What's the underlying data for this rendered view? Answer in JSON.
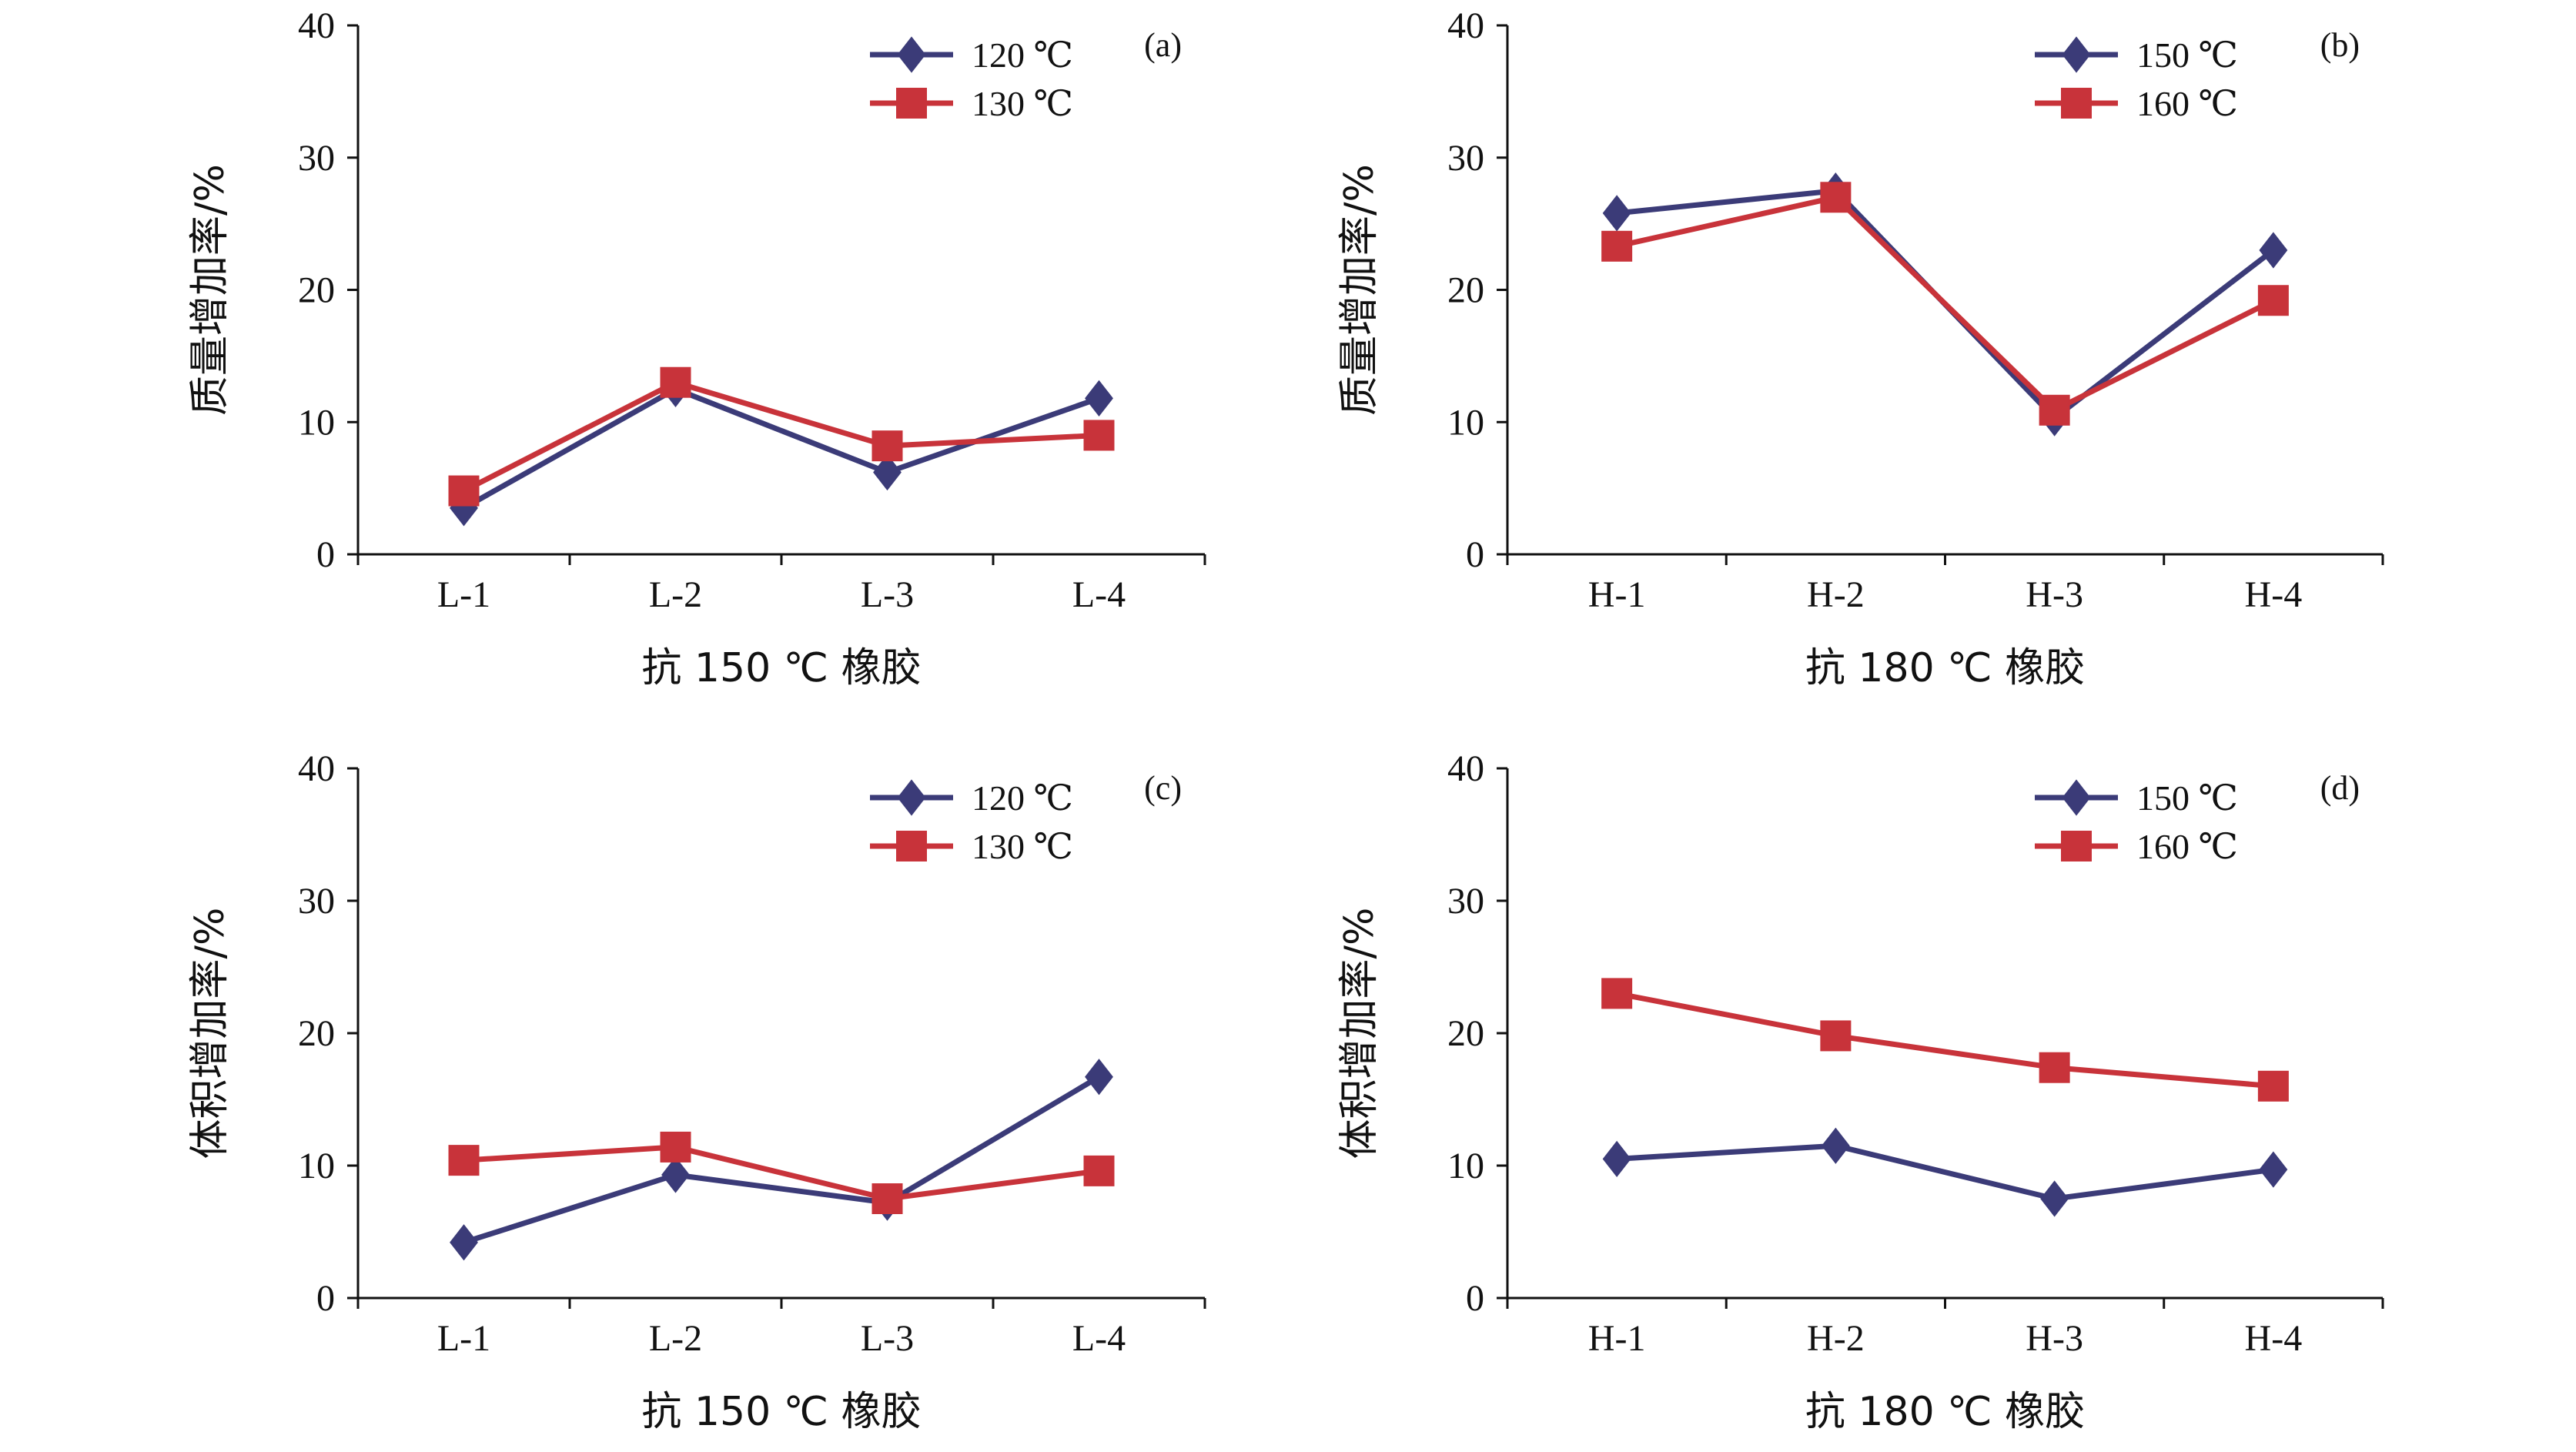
{
  "colors": {
    "series_a": "#3b3b78",
    "series_b": "#c8333a",
    "axis": "#111111"
  },
  "chart_data": [
    {
      "type": "line",
      "panel_label": "(a)",
      "categories": [
        "L-1",
        "L-2",
        "L-3",
        "L-4"
      ],
      "xlabel": "抗 150 ℃ 橡胶",
      "ylabel": "质量增加率/%",
      "ylim": [
        0,
        40
      ],
      "yticks": [
        0,
        10,
        20,
        30,
        40
      ],
      "legend_position": "top-right",
      "series": [
        {
          "name": "120 ℃",
          "marker": "diamond",
          "values": [
            3.5,
            12.5,
            6.2,
            11.8
          ]
        },
        {
          "name": "130 ℃",
          "marker": "square",
          "values": [
            4.8,
            13.0,
            8.2,
            9.0
          ]
        }
      ]
    },
    {
      "type": "line",
      "panel_label": "(b)",
      "categories": [
        "H-1",
        "H-2",
        "H-3",
        "H-4"
      ],
      "xlabel": "抗 180 ℃ 橡胶",
      "ylabel": "质量增加率/%",
      "ylim": [
        0,
        40
      ],
      "yticks": [
        0,
        10,
        20,
        30,
        40
      ],
      "legend_position": "top-right",
      "series": [
        {
          "name": "150 ℃",
          "marker": "diamond",
          "values": [
            25.8,
            27.5,
            10.3,
            23.0
          ]
        },
        {
          "name": "160 ℃",
          "marker": "square",
          "values": [
            23.3,
            27.0,
            10.9,
            19.2
          ]
        }
      ]
    },
    {
      "type": "line",
      "panel_label": "(c)",
      "categories": [
        "L-1",
        "L-2",
        "L-3",
        "L-4"
      ],
      "xlabel": "抗 150 ℃ 橡胶",
      "ylabel": "体积增加率/%",
      "ylim": [
        0,
        40
      ],
      "yticks": [
        0,
        10,
        20,
        30,
        40
      ],
      "legend_position": "top-right",
      "series": [
        {
          "name": "120 ℃",
          "marker": "diamond",
          "values": [
            4.2,
            9.3,
            7.2,
            16.7
          ]
        },
        {
          "name": "130 ℃",
          "marker": "square",
          "values": [
            10.4,
            11.4,
            7.5,
            9.6
          ]
        }
      ]
    },
    {
      "type": "line",
      "panel_label": "(d)",
      "categories": [
        "H-1",
        "H-2",
        "H-3",
        "H-4"
      ],
      "xlabel": "抗 180 ℃ 橡胶",
      "ylabel": "体积增加率/%",
      "ylim": [
        0,
        40
      ],
      "yticks": [
        0,
        10,
        20,
        30,
        40
      ],
      "legend_position": "top-right",
      "series": [
        {
          "name": "150 ℃",
          "marker": "diamond",
          "values": [
            10.5,
            11.5,
            7.5,
            9.7
          ]
        },
        {
          "name": "160 ℃",
          "marker": "square",
          "values": [
            23.0,
            19.8,
            17.4,
            16.0
          ]
        }
      ]
    }
  ]
}
